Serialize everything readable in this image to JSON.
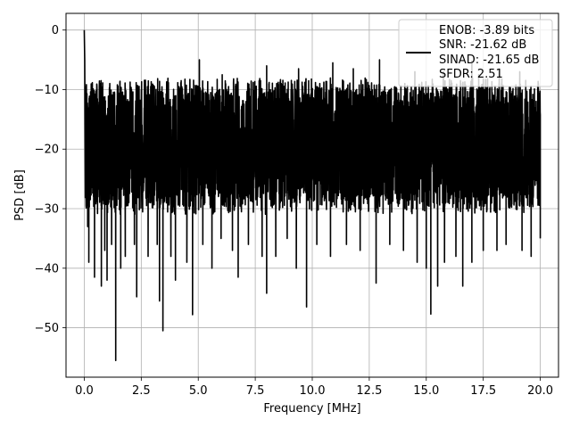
{
  "chart_data": {
    "type": "line",
    "xlabel": "Frequency [MHz]",
    "ylabel": "PSD [dB]",
    "xlim": [
      -0.8,
      20.8
    ],
    "ylim": [
      -58.3,
      2.8
    ],
    "xticks": [
      0.0,
      2.5,
      5.0,
      7.5,
      10.0,
      12.5,
      15.0,
      17.5,
      20.0
    ],
    "xtick_labels": [
      "0.0",
      "2.5",
      "5.0",
      "7.5",
      "10.0",
      "12.5",
      "15.0",
      "17.5",
      "20.0"
    ],
    "yticks": [
      0,
      -10,
      -20,
      -30,
      -40,
      -50
    ],
    "ytick_labels": [
      "0",
      "−10",
      "−20",
      "−30",
      "−40",
      "−50"
    ],
    "grid": true,
    "legend": {
      "placement": "top-right",
      "entries": [
        "ENOB: -3.89 bits",
        "SNR: -21.62 dB",
        "SINAD: -21.65 dB",
        "SFDR: 2.51"
      ]
    },
    "series": [
      {
        "color": "#000000",
        "noise_band_db": [
          -29,
          -10
        ],
        "points": [
          [
            0.0,
            0.0
          ],
          [
            0.02,
            -5
          ],
          [
            0.05,
            -14
          ],
          [
            0.08,
            -21
          ],
          [
            0.1,
            -13
          ],
          [
            0.15,
            -33
          ],
          [
            0.2,
            -39
          ],
          [
            0.3,
            -26
          ],
          [
            0.45,
            -41.5
          ],
          [
            0.6,
            -28
          ],
          [
            0.75,
            -43
          ],
          [
            0.9,
            -37
          ],
          [
            1.0,
            -42
          ],
          [
            1.2,
            -36
          ],
          [
            1.38,
            -55.5
          ],
          [
            1.6,
            -40
          ],
          [
            1.8,
            -38
          ],
          [
            2.2,
            -36
          ],
          [
            2.3,
            -44.8
          ],
          [
            2.8,
            -38
          ],
          [
            3.2,
            -36
          ],
          [
            3.3,
            -45.5
          ],
          [
            3.45,
            -50.5
          ],
          [
            3.8,
            -38
          ],
          [
            4.0,
            -42
          ],
          [
            4.5,
            -39
          ],
          [
            4.75,
            -47.8
          ],
          [
            5.2,
            -36
          ],
          [
            5.6,
            -40
          ],
          [
            6.0,
            -35
          ],
          [
            6.5,
            -37
          ],
          [
            6.75,
            -41.5
          ],
          [
            7.2,
            -36
          ],
          [
            7.8,
            -38
          ],
          [
            8.0,
            -44.2
          ],
          [
            8.4,
            -38
          ],
          [
            8.9,
            -35
          ],
          [
            9.3,
            -40
          ],
          [
            9.75,
            -46.5
          ],
          [
            10.2,
            -36
          ],
          [
            10.8,
            -38
          ],
          [
            11.5,
            -36
          ],
          [
            12.1,
            -37
          ],
          [
            12.8,
            -42.5
          ],
          [
            13.4,
            -36
          ],
          [
            14.0,
            -37
          ],
          [
            14.6,
            -39
          ],
          [
            15.0,
            -40
          ],
          [
            15.2,
            -47.7
          ],
          [
            15.5,
            -43
          ],
          [
            15.8,
            -39
          ],
          [
            16.3,
            -38
          ],
          [
            16.6,
            -43
          ],
          [
            17.0,
            -39
          ],
          [
            17.5,
            -37
          ],
          [
            18.1,
            -37
          ],
          [
            18.5,
            -36
          ],
          [
            19.2,
            -37
          ],
          [
            19.6,
            -38
          ],
          [
            20.0,
            -35
          ]
        ],
        "peaks": [
          [
            4.25,
            -8.5
          ],
          [
            5.05,
            -5.0
          ],
          [
            6.05,
            -7.5
          ],
          [
            8.0,
            -6.0
          ],
          [
            9.4,
            -6.5
          ],
          [
            10.9,
            -5.5
          ],
          [
            11.8,
            -6.5
          ],
          [
            12.95,
            -5.0
          ],
          [
            14.5,
            -7.0
          ],
          [
            15.75,
            -7.0
          ],
          [
            16.5,
            -8.5
          ],
          [
            17.0,
            -5.2
          ],
          [
            17.3,
            -7.5
          ],
          [
            18.2,
            -6.5
          ],
          [
            19.1,
            -7.0
          ]
        ]
      }
    ]
  }
}
